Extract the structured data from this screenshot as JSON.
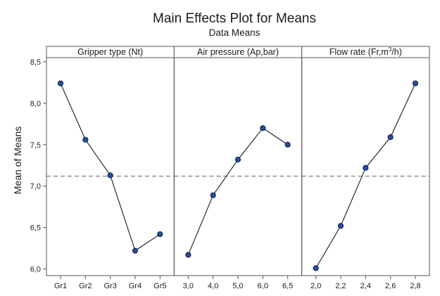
{
  "chart_data": {
    "type": "line",
    "title": "Main Effects Plot for Means",
    "subtitle": "Data Means",
    "ylabel": "Mean of Means",
    "xlabel": "",
    "ylim": [
      5.92,
      8.55
    ],
    "yticks": [
      "6,0",
      "6,5",
      "7,0",
      "7,5",
      "8,0",
      "8,5"
    ],
    "ytick_values": [
      6.0,
      6.5,
      7.0,
      7.5,
      8.0,
      8.5
    ],
    "reference_line": 7.12,
    "grid": false,
    "series_color": "#2b4c9b",
    "panels": [
      {
        "label": "Gripper type (Nt)",
        "categories": [
          "Gr1",
          "Gr2",
          "Gr3",
          "Gr4",
          "Gr5"
        ],
        "values": [
          8.24,
          7.56,
          7.13,
          6.22,
          6.42
        ]
      },
      {
        "label": "Air pressure (Ap,bar)",
        "categories": [
          "3,0",
          "4,0",
          "5,0",
          "6,0",
          "6,5"
        ],
        "values": [
          6.17,
          6.89,
          7.32,
          7.7,
          7.5
        ]
      },
      {
        "label_prefix": "Flow rate (Fr,m",
        "label_sup": "3",
        "label_suffix": "/h)",
        "categories": [
          "2,0",
          "2,2",
          "2,4",
          "2,6",
          "2,8"
        ],
        "values": [
          6.01,
          6.52,
          7.22,
          7.59,
          8.24
        ]
      }
    ]
  }
}
